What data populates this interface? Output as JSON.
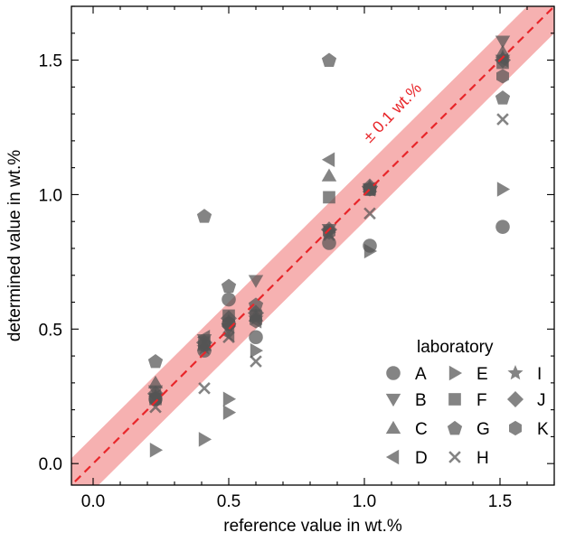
{
  "chart_data": {
    "type": "scatter",
    "xlabel": "reference value in wt.%",
    "ylabel": "determined value in wt.%",
    "xlim": [
      -0.08,
      1.7
    ],
    "ylim": [
      -0.08,
      1.7
    ],
    "xticks": [
      0.0,
      0.5,
      1.0,
      1.5
    ],
    "yticks": [
      0.0,
      0.5,
      1.0,
      1.5
    ],
    "xtick_labels": [
      "0.0",
      "0.5",
      "1.0",
      "1.5"
    ],
    "ytick_labels": [
      "0.0",
      "0.5",
      "1.0",
      "1.5"
    ],
    "grid": false,
    "reference_line": {
      "slope": 1,
      "intercept": 0,
      "style": "dashed",
      "color": "#e8262a"
    },
    "tolerance_band": {
      "width": 0.1,
      "label": "± 0.1 wt.%",
      "color": "#f5a3a3"
    },
    "marker_color": "#555555",
    "legend": {
      "title": "laboratory",
      "position": "bottom-right"
    },
    "series": [
      {
        "name": "A",
        "marker": "circle",
        "points": [
          [
            0.23,
            0.24
          ],
          [
            0.41,
            0.42
          ],
          [
            0.5,
            0.61
          ],
          [
            0.5,
            0.52
          ],
          [
            0.6,
            0.47
          ],
          [
            0.87,
            0.82
          ],
          [
            1.02,
            0.81
          ],
          [
            1.51,
            0.88
          ]
        ]
      },
      {
        "name": "B",
        "marker": "triangle-down",
        "points": [
          [
            0.23,
            0.27
          ],
          [
            0.41,
            0.46
          ],
          [
            0.5,
            0.5
          ],
          [
            0.6,
            0.68
          ],
          [
            0.87,
            0.87
          ],
          [
            1.02,
            1.02
          ],
          [
            1.51,
            1.57
          ]
        ]
      },
      {
        "name": "C",
        "marker": "triangle-up",
        "points": [
          [
            0.23,
            0.3
          ],
          [
            0.41,
            0.44
          ],
          [
            0.5,
            0.53
          ],
          [
            0.6,
            0.55
          ],
          [
            0.87,
            1.07
          ],
          [
            1.02,
            1.03
          ],
          [
            1.51,
            1.53
          ]
        ]
      },
      {
        "name": "D",
        "marker": "triangle-left",
        "points": [
          [
            0.23,
            0.25
          ],
          [
            0.41,
            0.47
          ],
          [
            0.5,
            0.48
          ],
          [
            0.6,
            0.53
          ],
          [
            0.87,
            1.13
          ],
          [
            1.02,
            1.02
          ],
          [
            1.51,
            1.5
          ]
        ]
      },
      {
        "name": "E",
        "marker": "triangle-right",
        "points": [
          [
            0.23,
            0.05
          ],
          [
            0.41,
            0.09
          ],
          [
            0.5,
            0.24
          ],
          [
            0.5,
            0.19
          ],
          [
            0.6,
            0.42
          ],
          [
            0.87,
            0.86
          ],
          [
            1.02,
            0.79
          ],
          [
            1.51,
            1.02
          ]
        ]
      },
      {
        "name": "F",
        "marker": "square",
        "points": [
          [
            0.23,
            0.24
          ],
          [
            0.41,
            0.45
          ],
          [
            0.5,
            0.55
          ],
          [
            0.6,
            0.55
          ],
          [
            0.87,
            0.99
          ],
          [
            1.02,
            1.02
          ],
          [
            1.51,
            1.49
          ]
        ]
      },
      {
        "name": "G",
        "marker": "pentagon",
        "points": [
          [
            0.23,
            0.38
          ],
          [
            0.41,
            0.92
          ],
          [
            0.5,
            0.66
          ],
          [
            0.6,
            0.59
          ],
          [
            0.87,
            1.5
          ],
          [
            1.02,
            1.02
          ],
          [
            1.51,
            1.36
          ]
        ]
      },
      {
        "name": "H",
        "marker": "x",
        "points": [
          [
            0.23,
            0.21
          ],
          [
            0.41,
            0.28
          ],
          [
            0.5,
            0.47
          ],
          [
            0.6,
            0.38
          ],
          [
            0.87,
            0.85
          ],
          [
            1.02,
            0.93
          ],
          [
            1.51,
            1.28
          ]
        ]
      },
      {
        "name": "I",
        "marker": "star",
        "points": [
          [
            0.23,
            0.25
          ],
          [
            0.41,
            0.43
          ],
          [
            0.5,
            0.51
          ],
          [
            0.6,
            0.54
          ],
          [
            0.87,
            0.86
          ],
          [
            1.02,
            1.02
          ],
          [
            1.51,
            1.51
          ]
        ]
      },
      {
        "name": "J",
        "marker": "diamond",
        "points": [
          [
            0.23,
            0.26
          ],
          [
            0.41,
            0.45
          ],
          [
            0.5,
            0.54
          ],
          [
            0.6,
            0.56
          ],
          [
            0.87,
            0.87
          ],
          [
            1.02,
            1.03
          ],
          [
            1.51,
            1.5
          ]
        ]
      },
      {
        "name": "K",
        "marker": "hexagon",
        "points": [
          [
            0.23,
            0.24
          ],
          [
            0.41,
            0.44
          ],
          [
            0.5,
            0.52
          ],
          [
            0.6,
            0.53
          ],
          [
            0.87,
            0.86
          ],
          [
            1.02,
            1.02
          ],
          [
            1.51,
            1.44
          ]
        ]
      }
    ]
  }
}
